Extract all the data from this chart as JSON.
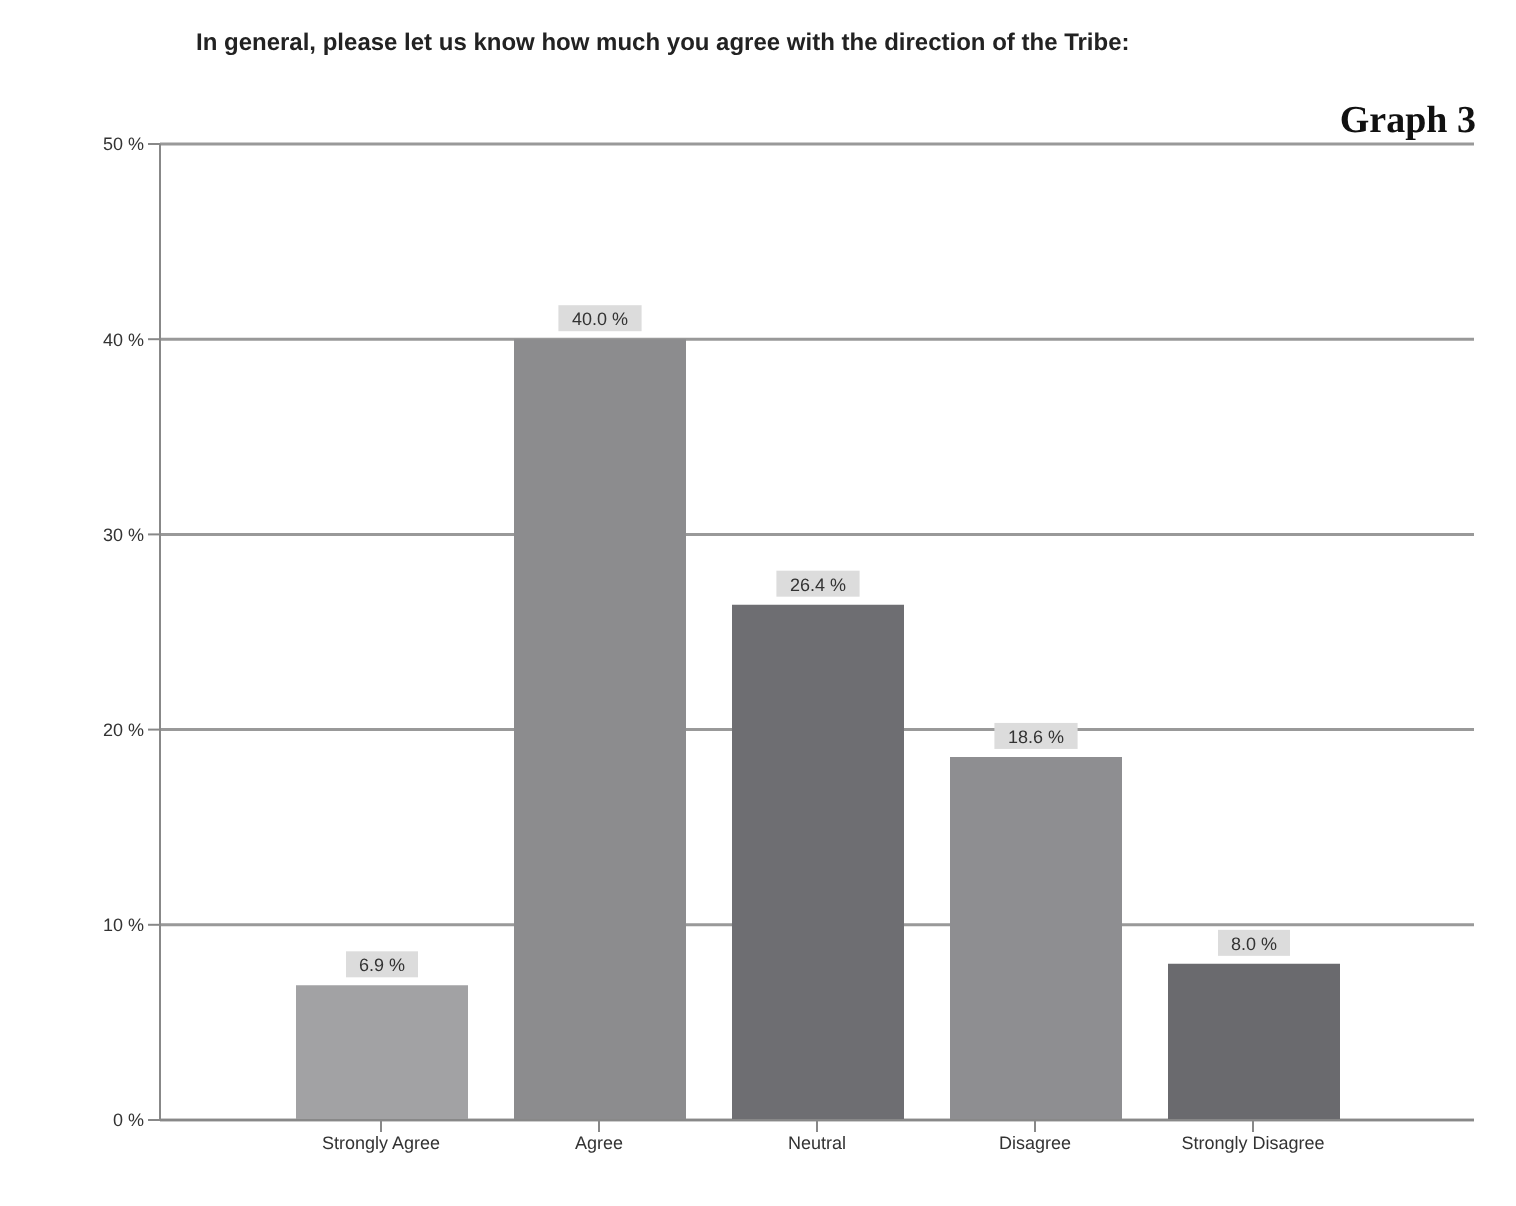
{
  "chart_data": {
    "type": "bar",
    "title": "In general, please let us know how much you agree with the direction of the Tribe:",
    "annotations": [
      "Graph 3"
    ],
    "categories": [
      "Strongly Agree",
      "Agree",
      "Neutral",
      "Disagree",
      "Strongly Disagree"
    ],
    "values": [
      6.9,
      40.0,
      26.4,
      18.6,
      8.0
    ],
    "value_labels": [
      "6.9 %",
      "40.0 %",
      "26.4 %",
      "18.6 %",
      "8.0 %"
    ],
    "colors": [
      "#a2a2a4",
      "#8c8c8e",
      "#6e6e72",
      "#8e8e91",
      "#6a6a6e"
    ],
    "ylim": [
      0,
      50
    ],
    "yticks": [
      {
        "value": 0,
        "label": "0 %"
      },
      {
        "value": 10,
        "label": "10 %"
      },
      {
        "value": 20,
        "label": "20 %"
      },
      {
        "value": 30,
        "label": "30 %"
      },
      {
        "value": 40,
        "label": "40 %"
      },
      {
        "value": 50,
        "label": "50 %"
      }
    ],
    "grid": "y"
  }
}
